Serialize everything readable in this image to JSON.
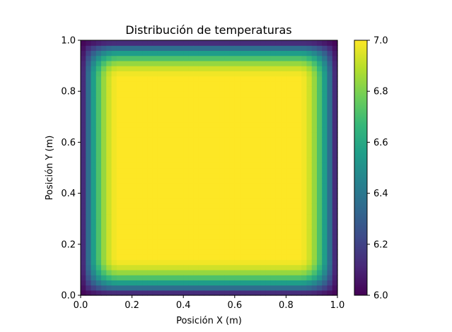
{
  "chart_data": {
    "type": "heatmap",
    "title": "Distribución de temperaturas",
    "xlabel": "Posición X (m)",
    "ylabel": "Posición Y (m)",
    "xlim": [
      0.0,
      1.0
    ],
    "ylim": [
      0.0,
      1.0
    ],
    "xticks": [
      "0.0",
      "0.2",
      "0.4",
      "0.6",
      "0.8",
      "1.0"
    ],
    "yticks": [
      "0.0",
      "0.2",
      "0.4",
      "0.6",
      "0.8",
      "1.0"
    ],
    "grid": false,
    "colormap": "viridis",
    "colorbar": {
      "range": [
        6.0,
        7.0
      ],
      "ticks": [
        "6.0",
        "6.2",
        "6.4",
        "6.6",
        "6.8",
        "7.0"
      ]
    },
    "field": {
      "description_of_values": "temperature ~6.0 at all four edges, rising smoothly to 7.0 in the interior",
      "edge_value": 6.0,
      "interior_value": 7.0,
      "transition_width": 0.15,
      "grid_cells": 50
    }
  },
  "colors": {
    "viridis": [
      "#440154",
      "#482878",
      "#3e4989",
      "#31688e",
      "#26828e",
      "#1f9e89",
      "#35b779",
      "#6ece58",
      "#b5de2b",
      "#fde725"
    ]
  }
}
